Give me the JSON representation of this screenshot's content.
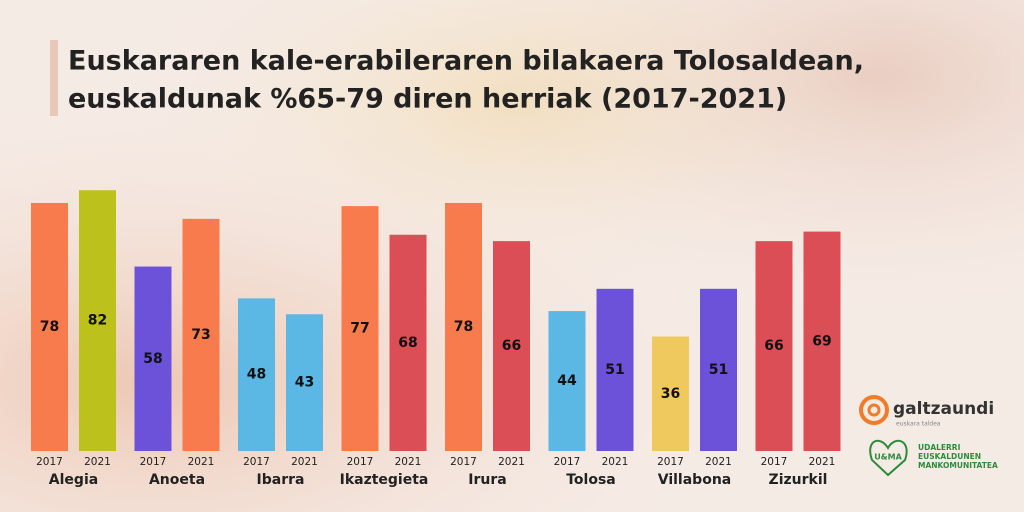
{
  "chart_data": {
    "type": "bar",
    "title": [
      "Euskararen kale-erabileraren bilakaera Tolosaldean,",
      "euskaldunak %65-79 diren herriak (2017-2021)"
    ],
    "categories": [
      "Alegia",
      "Anoeta",
      "Ibarra",
      "Ikaztegieta",
      "Irura",
      "Tolosa",
      "Villabona",
      "Zizurkil"
    ],
    "series": [
      {
        "name": "2017",
        "values": [
          78,
          58,
          48,
          77,
          78,
          44,
          36,
          66
        ],
        "colors": [
          "#f77b4d",
          "#6b52d9",
          "#5bb8e4",
          "#f77b4d",
          "#f77b4d",
          "#5bb8e4",
          "#f0c95e",
          "#dc4e55"
        ]
      },
      {
        "name": "2021",
        "values": [
          82,
          73,
          43,
          68,
          66,
          51,
          51,
          69
        ],
        "colors": [
          "#bcc21b",
          "#f77b4d",
          "#5bb8e4",
          "#dc4e55",
          "#dc4e55",
          "#6b52d9",
          "#6b52d9",
          "#dc4e55"
        ]
      }
    ],
    "logos": {
      "galtzaundi": "galtzaundi",
      "galtzaundi_sub": "euskara taldea",
      "uema_mark": "U&MA",
      "uema": [
        "UDALERRI",
        "EUSKALDUNEN",
        "MANKOMUNITATEA"
      ]
    }
  }
}
